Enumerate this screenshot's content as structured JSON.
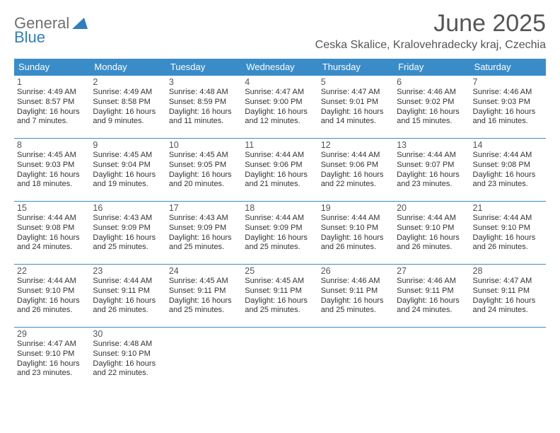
{
  "brand": {
    "name_a": "General",
    "name_b": "Blue"
  },
  "title": "June 2025",
  "subtitle": "Ceska Skalice, Kralovehradecky kraj, Czechia",
  "colors": {
    "header_bg": "#3a8cc9",
    "header_fg": "#ffffff",
    "rule": "#3a8cc9",
    "title_fg": "#555555",
    "body_fg": "#333333"
  },
  "day_names": [
    "Sunday",
    "Monday",
    "Tuesday",
    "Wednesday",
    "Thursday",
    "Friday",
    "Saturday"
  ],
  "weeks": [
    [
      {
        "n": "1",
        "sunrise": "4:49 AM",
        "sunset": "8:57 PM",
        "daylight_a": "Daylight: 16 hours",
        "daylight_b": "and 7 minutes."
      },
      {
        "n": "2",
        "sunrise": "4:49 AM",
        "sunset": "8:58 PM",
        "daylight_a": "Daylight: 16 hours",
        "daylight_b": "and 9 minutes."
      },
      {
        "n": "3",
        "sunrise": "4:48 AM",
        "sunset": "8:59 PM",
        "daylight_a": "Daylight: 16 hours",
        "daylight_b": "and 11 minutes."
      },
      {
        "n": "4",
        "sunrise": "4:47 AM",
        "sunset": "9:00 PM",
        "daylight_a": "Daylight: 16 hours",
        "daylight_b": "and 12 minutes."
      },
      {
        "n": "5",
        "sunrise": "4:47 AM",
        "sunset": "9:01 PM",
        "daylight_a": "Daylight: 16 hours",
        "daylight_b": "and 14 minutes."
      },
      {
        "n": "6",
        "sunrise": "4:46 AM",
        "sunset": "9:02 PM",
        "daylight_a": "Daylight: 16 hours",
        "daylight_b": "and 15 minutes."
      },
      {
        "n": "7",
        "sunrise": "4:46 AM",
        "sunset": "9:03 PM",
        "daylight_a": "Daylight: 16 hours",
        "daylight_b": "and 16 minutes."
      }
    ],
    [
      {
        "n": "8",
        "sunrise": "4:45 AM",
        "sunset": "9:03 PM",
        "daylight_a": "Daylight: 16 hours",
        "daylight_b": "and 18 minutes."
      },
      {
        "n": "9",
        "sunrise": "4:45 AM",
        "sunset": "9:04 PM",
        "daylight_a": "Daylight: 16 hours",
        "daylight_b": "and 19 minutes."
      },
      {
        "n": "10",
        "sunrise": "4:45 AM",
        "sunset": "9:05 PM",
        "daylight_a": "Daylight: 16 hours",
        "daylight_b": "and 20 minutes."
      },
      {
        "n": "11",
        "sunrise": "4:44 AM",
        "sunset": "9:06 PM",
        "daylight_a": "Daylight: 16 hours",
        "daylight_b": "and 21 minutes."
      },
      {
        "n": "12",
        "sunrise": "4:44 AM",
        "sunset": "9:06 PM",
        "daylight_a": "Daylight: 16 hours",
        "daylight_b": "and 22 minutes."
      },
      {
        "n": "13",
        "sunrise": "4:44 AM",
        "sunset": "9:07 PM",
        "daylight_a": "Daylight: 16 hours",
        "daylight_b": "and 23 minutes."
      },
      {
        "n": "14",
        "sunrise": "4:44 AM",
        "sunset": "9:08 PM",
        "daylight_a": "Daylight: 16 hours",
        "daylight_b": "and 23 minutes."
      }
    ],
    [
      {
        "n": "15",
        "sunrise": "4:44 AM",
        "sunset": "9:08 PM",
        "daylight_a": "Daylight: 16 hours",
        "daylight_b": "and 24 minutes."
      },
      {
        "n": "16",
        "sunrise": "4:43 AM",
        "sunset": "9:09 PM",
        "daylight_a": "Daylight: 16 hours",
        "daylight_b": "and 25 minutes."
      },
      {
        "n": "17",
        "sunrise": "4:43 AM",
        "sunset": "9:09 PM",
        "daylight_a": "Daylight: 16 hours",
        "daylight_b": "and 25 minutes."
      },
      {
        "n": "18",
        "sunrise": "4:44 AM",
        "sunset": "9:09 PM",
        "daylight_a": "Daylight: 16 hours",
        "daylight_b": "and 25 minutes."
      },
      {
        "n": "19",
        "sunrise": "4:44 AM",
        "sunset": "9:10 PM",
        "daylight_a": "Daylight: 16 hours",
        "daylight_b": "and 26 minutes."
      },
      {
        "n": "20",
        "sunrise": "4:44 AM",
        "sunset": "9:10 PM",
        "daylight_a": "Daylight: 16 hours",
        "daylight_b": "and 26 minutes."
      },
      {
        "n": "21",
        "sunrise": "4:44 AM",
        "sunset": "9:10 PM",
        "daylight_a": "Daylight: 16 hours",
        "daylight_b": "and 26 minutes."
      }
    ],
    [
      {
        "n": "22",
        "sunrise": "4:44 AM",
        "sunset": "9:10 PM",
        "daylight_a": "Daylight: 16 hours",
        "daylight_b": "and 26 minutes."
      },
      {
        "n": "23",
        "sunrise": "4:44 AM",
        "sunset": "9:11 PM",
        "daylight_a": "Daylight: 16 hours",
        "daylight_b": "and 26 minutes."
      },
      {
        "n": "24",
        "sunrise": "4:45 AM",
        "sunset": "9:11 PM",
        "daylight_a": "Daylight: 16 hours",
        "daylight_b": "and 25 minutes."
      },
      {
        "n": "25",
        "sunrise": "4:45 AM",
        "sunset": "9:11 PM",
        "daylight_a": "Daylight: 16 hours",
        "daylight_b": "and 25 minutes."
      },
      {
        "n": "26",
        "sunrise": "4:46 AM",
        "sunset": "9:11 PM",
        "daylight_a": "Daylight: 16 hours",
        "daylight_b": "and 25 minutes."
      },
      {
        "n": "27",
        "sunrise": "4:46 AM",
        "sunset": "9:11 PM",
        "daylight_a": "Daylight: 16 hours",
        "daylight_b": "and 24 minutes."
      },
      {
        "n": "28",
        "sunrise": "4:47 AM",
        "sunset": "9:11 PM",
        "daylight_a": "Daylight: 16 hours",
        "daylight_b": "and 24 minutes."
      }
    ],
    [
      {
        "n": "29",
        "sunrise": "4:47 AM",
        "sunset": "9:10 PM",
        "daylight_a": "Daylight: 16 hours",
        "daylight_b": "and 23 minutes."
      },
      {
        "n": "30",
        "sunrise": "4:48 AM",
        "sunset": "9:10 PM",
        "daylight_a": "Daylight: 16 hours",
        "daylight_b": "and 22 minutes."
      },
      null,
      null,
      null,
      null,
      null
    ]
  ],
  "label_sunrise": "Sunrise: ",
  "label_sunset": "Sunset: "
}
